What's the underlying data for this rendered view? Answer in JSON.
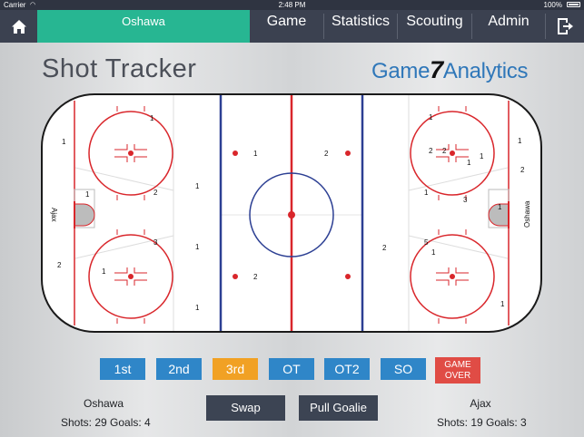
{
  "status_bar": {
    "carrier": "Carrier",
    "time": "2:48 PM",
    "battery": "100%"
  },
  "nav": {
    "team_tab": "Oshawa",
    "items": [
      "Game",
      "Statistics",
      "Scouting",
      "Admin"
    ]
  },
  "page": {
    "title": "Shot Tracker",
    "logo_prefix": "Game",
    "logo_seven": "7",
    "logo_suffix": "Analytics"
  },
  "rink": {
    "left_team": "Ajax",
    "right_team": "Oshawa",
    "shot_counts": [
      "1",
      "1",
      "2",
      "1",
      "1",
      "3",
      "1",
      "2",
      "1",
      "1",
      "1",
      "2",
      "2",
      "1",
      "2",
      "2",
      "2",
      "1",
      "1",
      "3",
      "1",
      "2",
      "1",
      "5",
      "1",
      "1",
      "1"
    ]
  },
  "periods": [
    {
      "label": "1st",
      "state": "normal"
    },
    {
      "label": "2nd",
      "state": "normal"
    },
    {
      "label": "3rd",
      "state": "active"
    },
    {
      "label": "OT",
      "state": "normal"
    },
    {
      "label": "OT2",
      "state": "normal"
    },
    {
      "label": "SO",
      "state": "normal"
    },
    {
      "label": "GAME OVER",
      "state": "danger"
    }
  ],
  "home_team": {
    "name": "Oshawa",
    "stats": "Shots: 29 Goals: 4"
  },
  "away_team": {
    "name": "Ajax",
    "stats": "Shots: 19 Goals: 3"
  },
  "actions": {
    "swap": "Swap",
    "pull_goalie": "Pull Goalie"
  },
  "colors": {
    "nav": "#3b4150",
    "team_tab": "#27b692",
    "period": "#2f86c8",
    "active_period": "#f1a124",
    "game_over": "#e04c45",
    "rink_red": "#d9262b",
    "rink_blue": "#2c3f93"
  }
}
